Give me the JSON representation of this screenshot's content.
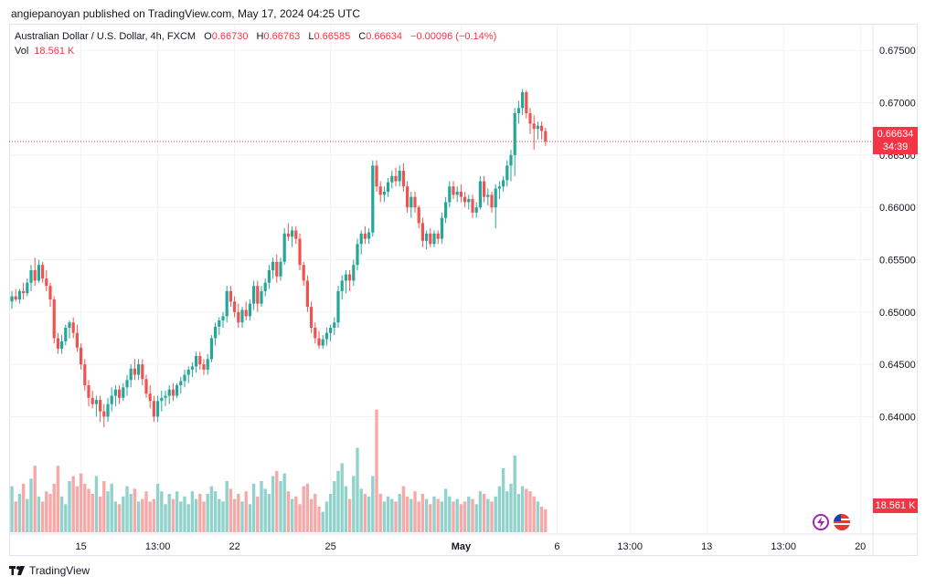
{
  "publish_line": "angiepanoyan published on TradingView.com, May 17, 2024 04:25 UTC",
  "legend": {
    "symbol": "Australian Dollar / U.S. Dollar, 4h, FXCM",
    "open_label": "O",
    "open": "0.66730",
    "high_label": "H",
    "high": "0.66763",
    "low_label": "L",
    "low": "0.66585",
    "close_label": "C",
    "close": "0.66634",
    "change": "−0.00096 (−0.14%)",
    "vol_label": "Vol",
    "vol": "18.561 K"
  },
  "price_tag": {
    "price": "0.66634",
    "countdown": "34:39"
  },
  "vol_tag": "18.561 K",
  "footer_brand": "TradingView",
  "colors": {
    "up": "#26a69a",
    "down": "#ef5350",
    "vol_up": "#92d2cc",
    "vol_down": "#f7a9a7",
    "grid": "#f0f3fa",
    "axis_text": "#131722",
    "last_price": "#f23645"
  },
  "chart_data": {
    "type": "candlestick",
    "y_ticks": [
      "0.67500",
      "0.67000",
      "0.66500",
      "0.66000",
      "0.65500",
      "0.65000",
      "0.64500",
      "0.64000"
    ],
    "ylim": [
      0.6362,
      0.6772
    ],
    "x_ticks": [
      {
        "label": "15",
        "bar": 18
      },
      {
        "label": "13:00",
        "bar": 38
      },
      {
        "label": "22",
        "bar": 58
      },
      {
        "label": "25",
        "bar": 83
      },
      {
        "label": "May",
        "bar": 117
      },
      {
        "label": "6",
        "bar": 142
      },
      {
        "label": "13:00",
        "bar": 161
      },
      {
        "label": "13",
        "bar": 181
      },
      {
        "label": "13:00",
        "bar": 201
      },
      {
        "label": "20",
        "bar": 221
      }
    ],
    "bars": [
      [
        0.651,
        0.652,
        0.6503,
        0.6515,
        1.8
      ],
      [
        0.6515,
        0.6522,
        0.651,
        0.6512,
        1.2
      ],
      [
        0.6512,
        0.6522,
        0.6508,
        0.652,
        1.5
      ],
      [
        0.652,
        0.6528,
        0.6512,
        0.6518,
        1.9
      ],
      [
        0.6518,
        0.6532,
        0.6515,
        0.6528,
        1.3
      ],
      [
        0.6528,
        0.6545,
        0.652,
        0.654,
        2.1
      ],
      [
        0.654,
        0.6552,
        0.6525,
        0.653,
        2.6
      ],
      [
        0.653,
        0.655,
        0.6528,
        0.6545,
        1.4
      ],
      [
        0.6545,
        0.6548,
        0.6528,
        0.6532,
        1.2
      ],
      [
        0.6532,
        0.654,
        0.652,
        0.6525,
        1.6
      ],
      [
        0.6525,
        0.6528,
        0.6505,
        0.6512,
        1.5
      ],
      [
        0.6512,
        0.6515,
        0.647,
        0.6475,
        1.9
      ],
      [
        0.6475,
        0.648,
        0.646,
        0.6465,
        2.6
      ],
      [
        0.6465,
        0.6478,
        0.646,
        0.6472,
        1.4
      ],
      [
        0.6472,
        0.6488,
        0.6468,
        0.6485,
        1.1
      ],
      [
        0.6485,
        0.6492,
        0.6475,
        0.649,
        2.0
      ],
      [
        0.649,
        0.6495,
        0.6475,
        0.648,
        2.2
      ],
      [
        0.648,
        0.6488,
        0.6462,
        0.6466,
        1.8
      ],
      [
        0.6466,
        0.647,
        0.6445,
        0.645,
        2.3
      ],
      [
        0.645,
        0.6455,
        0.6425,
        0.643,
        1.9
      ],
      [
        0.643,
        0.6435,
        0.641,
        0.6418,
        1.7
      ],
      [
        0.6418,
        0.6425,
        0.6408,
        0.6412,
        1.5
      ],
      [
        0.6412,
        0.642,
        0.64,
        0.6416,
        2.2
      ],
      [
        0.6416,
        0.642,
        0.6395,
        0.6405,
        1.4
      ],
      [
        0.6405,
        0.6412,
        0.639,
        0.64,
        2.0
      ],
      [
        0.64,
        0.6418,
        0.6395,
        0.6412,
        1.6
      ],
      [
        0.6412,
        0.6428,
        0.6405,
        0.642,
        1.9
      ],
      [
        0.642,
        0.643,
        0.641,
        0.6426,
        1.2
      ],
      [
        0.6426,
        0.643,
        0.6412,
        0.6418,
        1.1
      ],
      [
        0.6418,
        0.6432,
        0.6415,
        0.6428,
        1.4
      ],
      [
        0.6428,
        0.644,
        0.642,
        0.6435,
        1.8
      ],
      [
        0.6435,
        0.645,
        0.6428,
        0.6446,
        1.5
      ],
      [
        0.6446,
        0.6455,
        0.6435,
        0.644,
        1.7
      ],
      [
        0.644,
        0.6455,
        0.6435,
        0.645,
        1.2
      ],
      [
        0.645,
        0.6455,
        0.643,
        0.6436,
        1.3
      ],
      [
        0.6436,
        0.644,
        0.6418,
        0.6422,
        1.6
      ],
      [
        0.6422,
        0.643,
        0.6408,
        0.6415,
        1.2
      ],
      [
        0.6415,
        0.642,
        0.6395,
        0.64,
        1.3
      ],
      [
        0.64,
        0.642,
        0.6395,
        0.6415,
        1.9
      ],
      [
        0.6415,
        0.6425,
        0.6405,
        0.6418,
        1.6
      ],
      [
        0.6418,
        0.6425,
        0.641,
        0.642,
        1.1
      ],
      [
        0.642,
        0.643,
        0.6412,
        0.6426,
        1.5
      ],
      [
        0.6426,
        0.6432,
        0.6415,
        0.642,
        1.3
      ],
      [
        0.642,
        0.6432,
        0.6418,
        0.643,
        1.6
      ],
      [
        0.643,
        0.6438,
        0.6422,
        0.6434,
        1.2
      ],
      [
        0.6434,
        0.6445,
        0.6428,
        0.644,
        1.4
      ],
      [
        0.644,
        0.6448,
        0.6432,
        0.6445,
        1.1
      ],
      [
        0.6445,
        0.6452,
        0.6438,
        0.6448,
        1.6
      ],
      [
        0.6448,
        0.6462,
        0.6442,
        0.6458,
        1.3
      ],
      [
        0.6458,
        0.6462,
        0.6445,
        0.645,
        1.5
      ],
      [
        0.645,
        0.6455,
        0.644,
        0.6445,
        1.2
      ],
      [
        0.6445,
        0.646,
        0.644,
        0.6455,
        1.5
      ],
      [
        0.6455,
        0.6478,
        0.6452,
        0.6475,
        1.8
      ],
      [
        0.6475,
        0.649,
        0.6468,
        0.6486,
        1.6
      ],
      [
        0.6486,
        0.6495,
        0.6478,
        0.6492,
        1.3
      ],
      [
        0.6492,
        0.65,
        0.6485,
        0.6496,
        1.2
      ],
      [
        0.6496,
        0.6525,
        0.649,
        0.652,
        2.0
      ],
      [
        0.652,
        0.6525,
        0.6505,
        0.651,
        1.7
      ],
      [
        0.651,
        0.6515,
        0.6495,
        0.65,
        1.3
      ],
      [
        0.65,
        0.6508,
        0.6485,
        0.649,
        1.5
      ],
      [
        0.649,
        0.6505,
        0.6485,
        0.6502,
        1.2
      ],
      [
        0.6502,
        0.651,
        0.6492,
        0.6496,
        1.6
      ],
      [
        0.6496,
        0.6512,
        0.6492,
        0.6508,
        1.1
      ],
      [
        0.6508,
        0.653,
        0.6502,
        0.6525,
        1.9
      ],
      [
        0.6525,
        0.653,
        0.65,
        0.6508,
        1.4
      ],
      [
        0.6508,
        0.6525,
        0.6505,
        0.652,
        2.0
      ],
      [
        0.652,
        0.6532,
        0.6515,
        0.6528,
        1.7
      ],
      [
        0.6528,
        0.6545,
        0.6522,
        0.654,
        1.5
      ],
      [
        0.654,
        0.6552,
        0.6532,
        0.6548,
        2.2
      ],
      [
        0.6548,
        0.6555,
        0.6528,
        0.6534,
        2.4
      ],
      [
        0.6534,
        0.6552,
        0.653,
        0.6548,
        2.0
      ],
      [
        0.6548,
        0.658,
        0.6545,
        0.6575,
        2.3
      ],
      [
        0.6575,
        0.6585,
        0.6568,
        0.6572,
        1.6
      ],
      [
        0.6572,
        0.6582,
        0.6562,
        0.6578,
        1.3
      ],
      [
        0.6578,
        0.6582,
        0.6565,
        0.657,
        1.4
      ],
      [
        0.657,
        0.6575,
        0.654,
        0.6545,
        1.1
      ],
      [
        0.6545,
        0.6548,
        0.6525,
        0.653,
        1.8
      ],
      [
        0.653,
        0.6535,
        0.65,
        0.6505,
        1.9
      ],
      [
        0.6505,
        0.651,
        0.648,
        0.6485,
        1.3
      ],
      [
        0.6485,
        0.649,
        0.647,
        0.6475,
        1.5
      ],
      [
        0.6475,
        0.6482,
        0.6465,
        0.6468,
        1.0
      ],
      [
        0.6468,
        0.6478,
        0.6465,
        0.6474,
        0.8
      ],
      [
        0.6474,
        0.6485,
        0.6468,
        0.648,
        1.2
      ],
      [
        0.648,
        0.6488,
        0.6472,
        0.6485,
        1.5
      ],
      [
        0.6485,
        0.6495,
        0.6478,
        0.649,
        2.0
      ],
      [
        0.649,
        0.6525,
        0.6485,
        0.652,
        2.4
      ],
      [
        0.652,
        0.6535,
        0.6512,
        0.653,
        2.7
      ],
      [
        0.653,
        0.654,
        0.6518,
        0.6536,
        1.8
      ],
      [
        0.6536,
        0.654,
        0.652,
        0.653,
        1.3
      ],
      [
        0.653,
        0.655,
        0.6525,
        0.6545,
        2.2
      ],
      [
        0.6545,
        0.657,
        0.654,
        0.6565,
        3.3
      ],
      [
        0.6565,
        0.6578,
        0.6555,
        0.6575,
        1.7
      ],
      [
        0.6575,
        0.6582,
        0.6565,
        0.657,
        1.5
      ],
      [
        0.657,
        0.658,
        0.6565,
        0.6576,
        1.4
      ],
      [
        0.6576,
        0.6645,
        0.6572,
        0.664,
        2.2
      ],
      [
        0.664,
        0.6645,
        0.6615,
        0.662,
        4.8
      ],
      [
        0.662,
        0.6625,
        0.6605,
        0.6612,
        1.5
      ],
      [
        0.6612,
        0.662,
        0.6605,
        0.6615,
        1.2
      ],
      [
        0.6615,
        0.6628,
        0.661,
        0.6624,
        1.4
      ],
      [
        0.6624,
        0.6635,
        0.6618,
        0.663,
        1.3
      ],
      [
        0.663,
        0.6638,
        0.662,
        0.6625,
        1.2
      ],
      [
        0.6625,
        0.664,
        0.662,
        0.6635,
        1.5
      ],
      [
        0.6635,
        0.6642,
        0.6615,
        0.662,
        1.8
      ],
      [
        0.662,
        0.6625,
        0.6595,
        0.66,
        1.4
      ],
      [
        0.66,
        0.6615,
        0.659,
        0.661,
        1.3
      ],
      [
        0.661,
        0.6615,
        0.6595,
        0.66,
        1.6
      ],
      [
        0.66,
        0.6602,
        0.658,
        0.6585,
        1.2
      ],
      [
        0.6585,
        0.659,
        0.6562,
        0.6568,
        1.5
      ],
      [
        0.6568,
        0.6578,
        0.656,
        0.6575,
        1.3
      ],
      [
        0.6575,
        0.658,
        0.6562,
        0.6565,
        1.1
      ],
      [
        0.6565,
        0.6578,
        0.6562,
        0.6575,
        1.4
      ],
      [
        0.6575,
        0.6578,
        0.6565,
        0.657,
        1.3
      ],
      [
        0.657,
        0.6595,
        0.6565,
        0.659,
        1.2
      ],
      [
        0.659,
        0.661,
        0.6585,
        0.6605,
        1.7
      ],
      [
        0.6605,
        0.6625,
        0.66,
        0.662,
        1.4
      ],
      [
        0.662,
        0.6625,
        0.6608,
        0.6612,
        1.2
      ],
      [
        0.6612,
        0.662,
        0.6605,
        0.6615,
        1.3
      ],
      [
        0.6615,
        0.6622,
        0.6605,
        0.661,
        1.1
      ],
      [
        0.661,
        0.6615,
        0.66,
        0.6605,
        1.2
      ],
      [
        0.6605,
        0.6612,
        0.6598,
        0.6608,
        1.4
      ],
      [
        0.6608,
        0.6612,
        0.659,
        0.6595,
        1.3
      ],
      [
        0.6595,
        0.6605,
        0.659,
        0.66,
        1.1
      ],
      [
        0.66,
        0.663,
        0.6598,
        0.6625,
        1.6
      ],
      [
        0.6625,
        0.663,
        0.6605,
        0.661,
        1.5
      ],
      [
        0.661,
        0.6618,
        0.6602,
        0.6612,
        1.3
      ],
      [
        0.6612,
        0.6615,
        0.6595,
        0.66,
        1.2
      ],
      [
        0.66,
        0.6622,
        0.658,
        0.6618,
        1.4
      ],
      [
        0.6618,
        0.6625,
        0.6608,
        0.662,
        1.8
      ],
      [
        0.662,
        0.663,
        0.6615,
        0.6626,
        2.5
      ],
      [
        0.6626,
        0.6645,
        0.662,
        0.664,
        1.6
      ],
      [
        0.664,
        0.6655,
        0.6625,
        0.665,
        1.9
      ],
      [
        0.665,
        0.6695,
        0.663,
        0.669,
        3.0
      ],
      [
        0.669,
        0.6702,
        0.668,
        0.6695,
        1.5
      ],
      [
        0.6695,
        0.6713,
        0.6688,
        0.671,
        1.8
      ],
      [
        0.671,
        0.6712,
        0.6685,
        0.669,
        1.7
      ],
      [
        0.669,
        0.6695,
        0.667,
        0.668,
        1.6
      ],
      [
        0.668,
        0.6688,
        0.6655,
        0.6675,
        1.4
      ],
      [
        0.6675,
        0.6682,
        0.6665,
        0.6678,
        1.2
      ],
      [
        0.6678,
        0.6682,
        0.6665,
        0.6673,
        1.0
      ],
      [
        0.6673,
        0.6676,
        0.6659,
        0.6663,
        0.9
      ]
    ]
  }
}
